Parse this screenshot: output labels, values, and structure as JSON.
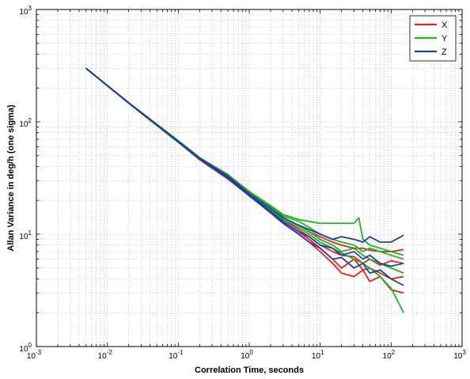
{
  "chart_data": {
    "type": "line",
    "title": "",
    "xlabel": "Correlation Time, seconds",
    "ylabel": "Allan Variance in deg/h (one sigma)",
    "xscale": "log",
    "yscale": "log",
    "xlim": [
      0.001,
      1000
    ],
    "ylim": [
      1,
      1000
    ],
    "grid": true,
    "legend_position": "top-right",
    "x_ticks": [
      {
        "base": "10",
        "exp": "-3"
      },
      {
        "base": "10",
        "exp": "-2"
      },
      {
        "base": "10",
        "exp": "-1"
      },
      {
        "base": "10",
        "exp": "0"
      },
      {
        "base": "10",
        "exp": "1"
      },
      {
        "base": "10",
        "exp": "2"
      },
      {
        "base": "10",
        "exp": "3"
      }
    ],
    "y_ticks": [
      {
        "base": "10",
        "exp": "0"
      },
      {
        "base": "10",
        "exp": "1"
      },
      {
        "base": "10",
        "exp": "2"
      },
      {
        "base": "10",
        "exp": "3"
      }
    ],
    "series": [
      {
        "name": "X",
        "color": "#e8201f",
        "lines": [
          {
            "x": [
              0.005,
              0.01,
              0.02,
              0.05,
              0.1,
              0.2,
              0.5,
              1,
              2,
              3,
              5,
              7,
              10,
              15,
              20,
              30,
              40,
              50,
              70,
              100,
              150
            ],
            "y": [
              300,
              210,
              148,
              95,
              68,
              48,
              33,
              23,
              17,
              14,
              12,
              10.5,
              9.5,
              8.5,
              8,
              7.5,
              7.5,
              7.2,
              7,
              7,
              7.3
            ]
          },
          {
            "x": [
              0.005,
              0.01,
              0.02,
              0.05,
              0.1,
              0.2,
              0.5,
              1,
              2,
              3,
              5,
              7,
              10,
              15,
              20,
              30,
              40,
              50,
              70,
              100,
              150
            ],
            "y": [
              300,
              210,
              148,
              94,
              67,
              47,
              32,
              22.5,
              16.5,
              13.5,
              11,
              9.5,
              8,
              7,
              6.5,
              6.3,
              5.5,
              6,
              5.3,
              5.8,
              5.5
            ]
          },
          {
            "x": [
              0.005,
              0.01,
              0.02,
              0.05,
              0.1,
              0.2,
              0.5,
              1,
              2,
              3,
              5,
              7,
              10,
              15,
              20,
              30,
              40,
              50,
              70,
              100,
              150
            ],
            "y": [
              300,
              210,
              147,
              93,
              66,
              46.5,
              31.5,
              22,
              16,
              13,
              10.5,
              9,
              7.5,
              6,
              5,
              6,
              4.8,
              5,
              4.5,
              4,
              4.2
            ]
          },
          {
            "x": [
              0.005,
              0.01,
              0.02,
              0.05,
              0.1,
              0.2,
              0.5,
              1,
              2,
              3,
              5,
              7,
              10,
              15,
              20,
              30,
              40,
              50,
              70,
              100,
              150
            ],
            "y": [
              300,
              210,
              147,
              93,
              66,
              46,
              31,
              22,
              15.5,
              12.5,
              10,
              8.5,
              7,
              5.5,
              4.5,
              4.2,
              4.8,
              3.8,
              4.2,
              3.2,
              3
            ]
          }
        ]
      },
      {
        "name": "Y",
        "color": "#22b325",
        "lines": [
          {
            "x": [
              0.005,
              0.01,
              0.02,
              0.05,
              0.1,
              0.2,
              0.5,
              1,
              2,
              3,
              5,
              7,
              10,
              15,
              20,
              30,
              35,
              40,
              50,
              70,
              100,
              150
            ],
            "y": [
              300,
              210,
              148,
              95,
              68,
              48,
              34,
              24,
              18,
              15,
              13.5,
              13,
              12.5,
              12.5,
              12.5,
              12.5,
              14,
              9,
              8,
              7.5,
              7,
              6.5
            ]
          },
          {
            "x": [
              0.005,
              0.01,
              0.02,
              0.05,
              0.1,
              0.2,
              0.5,
              1,
              2,
              3,
              5,
              7,
              10,
              15,
              20,
              30,
              40,
              50,
              70,
              100,
              150
            ],
            "y": [
              300,
              210,
              148,
              95,
              68,
              48,
              33.5,
              23.5,
              17.5,
              14.5,
              13,
              11.5,
              10,
              9,
              8.5,
              8,
              7,
              7.5,
              7,
              6.5,
              6
            ]
          },
          {
            "x": [
              0.005,
              0.01,
              0.02,
              0.05,
              0.1,
              0.2,
              0.5,
              1,
              2,
              3,
              5,
              7,
              10,
              15,
              20,
              30,
              40,
              50,
              70,
              100,
              150
            ],
            "y": [
              300,
              210,
              147,
              94,
              67,
              47,
              32.5,
              23,
              17,
              14,
              12,
              10.5,
              9,
              8,
              7,
              7.5,
              6.5,
              6,
              5.5,
              5,
              4.5
            ]
          },
          {
            "x": [
              0.005,
              0.01,
              0.02,
              0.05,
              0.1,
              0.2,
              0.5,
              1,
              2,
              3,
              5,
              7,
              10,
              15,
              20,
              30,
              40,
              50,
              70,
              100,
              150
            ],
            "y": [
              300,
              210,
              147,
              93,
              66,
              46.5,
              32,
              22.5,
              16.5,
              13.5,
              11.5,
              10,
              8.5,
              7.5,
              6.8,
              6,
              5.5,
              5,
              4.2,
              3.3,
              2
            ]
          }
        ]
      },
      {
        "name": "Z",
        "color": "#2040a0",
        "lines": [
          {
            "x": [
              0.005,
              0.01,
              0.02,
              0.05,
              0.1,
              0.2,
              0.5,
              1,
              2,
              3,
              5,
              7,
              10,
              15,
              20,
              30,
              40,
              50,
              70,
              100,
              150
            ],
            "y": [
              300,
              210,
              148,
              94,
              67,
              47.5,
              33,
              23,
              17,
              14,
              12,
              11,
              10,
              9,
              9.5,
              9,
              8.5,
              9.5,
              8.5,
              8.5,
              9.8
            ]
          },
          {
            "x": [
              0.005,
              0.01,
              0.02,
              0.05,
              0.1,
              0.2,
              0.5,
              1,
              2,
              3,
              5,
              7,
              10,
              15,
              20,
              30,
              40,
              50,
              70,
              100,
              150
            ],
            "y": [
              300,
              210,
              147,
              93,
              66,
              47,
              32,
              22.5,
              16,
              13,
              10.5,
              9.5,
              8,
              7.5,
              6.5,
              7,
              6,
              6.5,
              5.5,
              5.2,
              5.5
            ]
          },
          {
            "x": [
              0.005,
              0.01,
              0.02,
              0.05,
              0.1,
              0.2,
              0.5,
              1,
              2,
              3,
              5,
              7,
              10,
              15,
              20,
              30,
              40,
              50,
              70,
              100,
              150
            ],
            "y": [
              300,
              210,
              147,
              93,
              66,
              46.5,
              31.5,
              22,
              15.5,
              12.5,
              10,
              8.5,
              7.5,
              6,
              6.2,
              5,
              5.5,
              4.5,
              4.8,
              4,
              3.5
            ]
          }
        ]
      }
    ]
  }
}
